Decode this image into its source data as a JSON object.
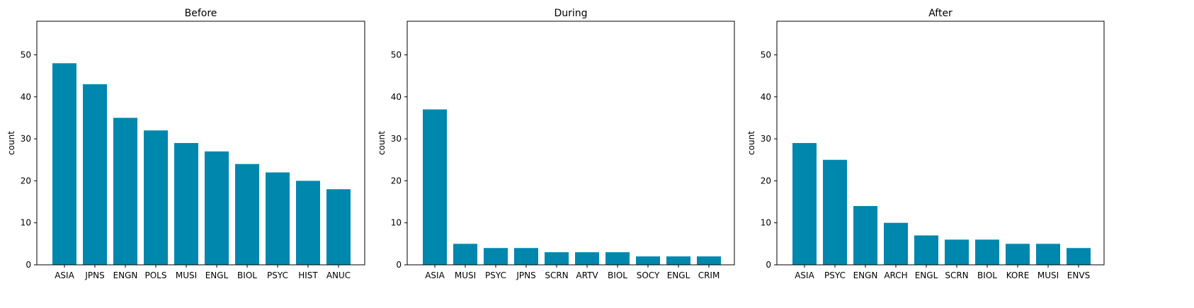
{
  "figure": {
    "bar_color": "#0087ae",
    "ylabel": "count"
  },
  "chart_data": [
    {
      "type": "bar",
      "title": "Before",
      "xlabel": "",
      "ylabel": "count",
      "ylim": [
        0,
        58
      ],
      "yticks": [
        0,
        10,
        20,
        30,
        40,
        50
      ],
      "categories": [
        "ASIA",
        "JPNS",
        "ENGN",
        "POLS",
        "MUSI",
        "ENGL",
        "BIOL",
        "PSYC",
        "HIST",
        "ANUC"
      ],
      "values": [
        48,
        43,
        35,
        32,
        29,
        27,
        24,
        22,
        20,
        18
      ]
    },
    {
      "type": "bar",
      "title": "During",
      "xlabel": "",
      "ylabel": "count",
      "ylim": [
        0,
        58
      ],
      "yticks": [
        0,
        10,
        20,
        30,
        40,
        50
      ],
      "categories": [
        "ASIA",
        "MUSI",
        "PSYC",
        "JPNS",
        "SCRN",
        "ARTV",
        "BIOL",
        "SOCY",
        "ENGL",
        "CRIM"
      ],
      "values": [
        37,
        5,
        4,
        4,
        3,
        3,
        3,
        2,
        2,
        2
      ]
    },
    {
      "type": "bar",
      "title": "After",
      "xlabel": "",
      "ylabel": "count",
      "ylim": [
        0,
        58
      ],
      "yticks": [
        0,
        10,
        20,
        30,
        40,
        50
      ],
      "categories": [
        "ASIA",
        "PSYC",
        "ENGN",
        "ARCH",
        "ENGL",
        "SCRN",
        "BIOL",
        "KORE",
        "MUSI",
        "ENVS"
      ],
      "values": [
        29,
        25,
        14,
        10,
        7,
        6,
        6,
        5,
        5,
        4
      ]
    }
  ]
}
